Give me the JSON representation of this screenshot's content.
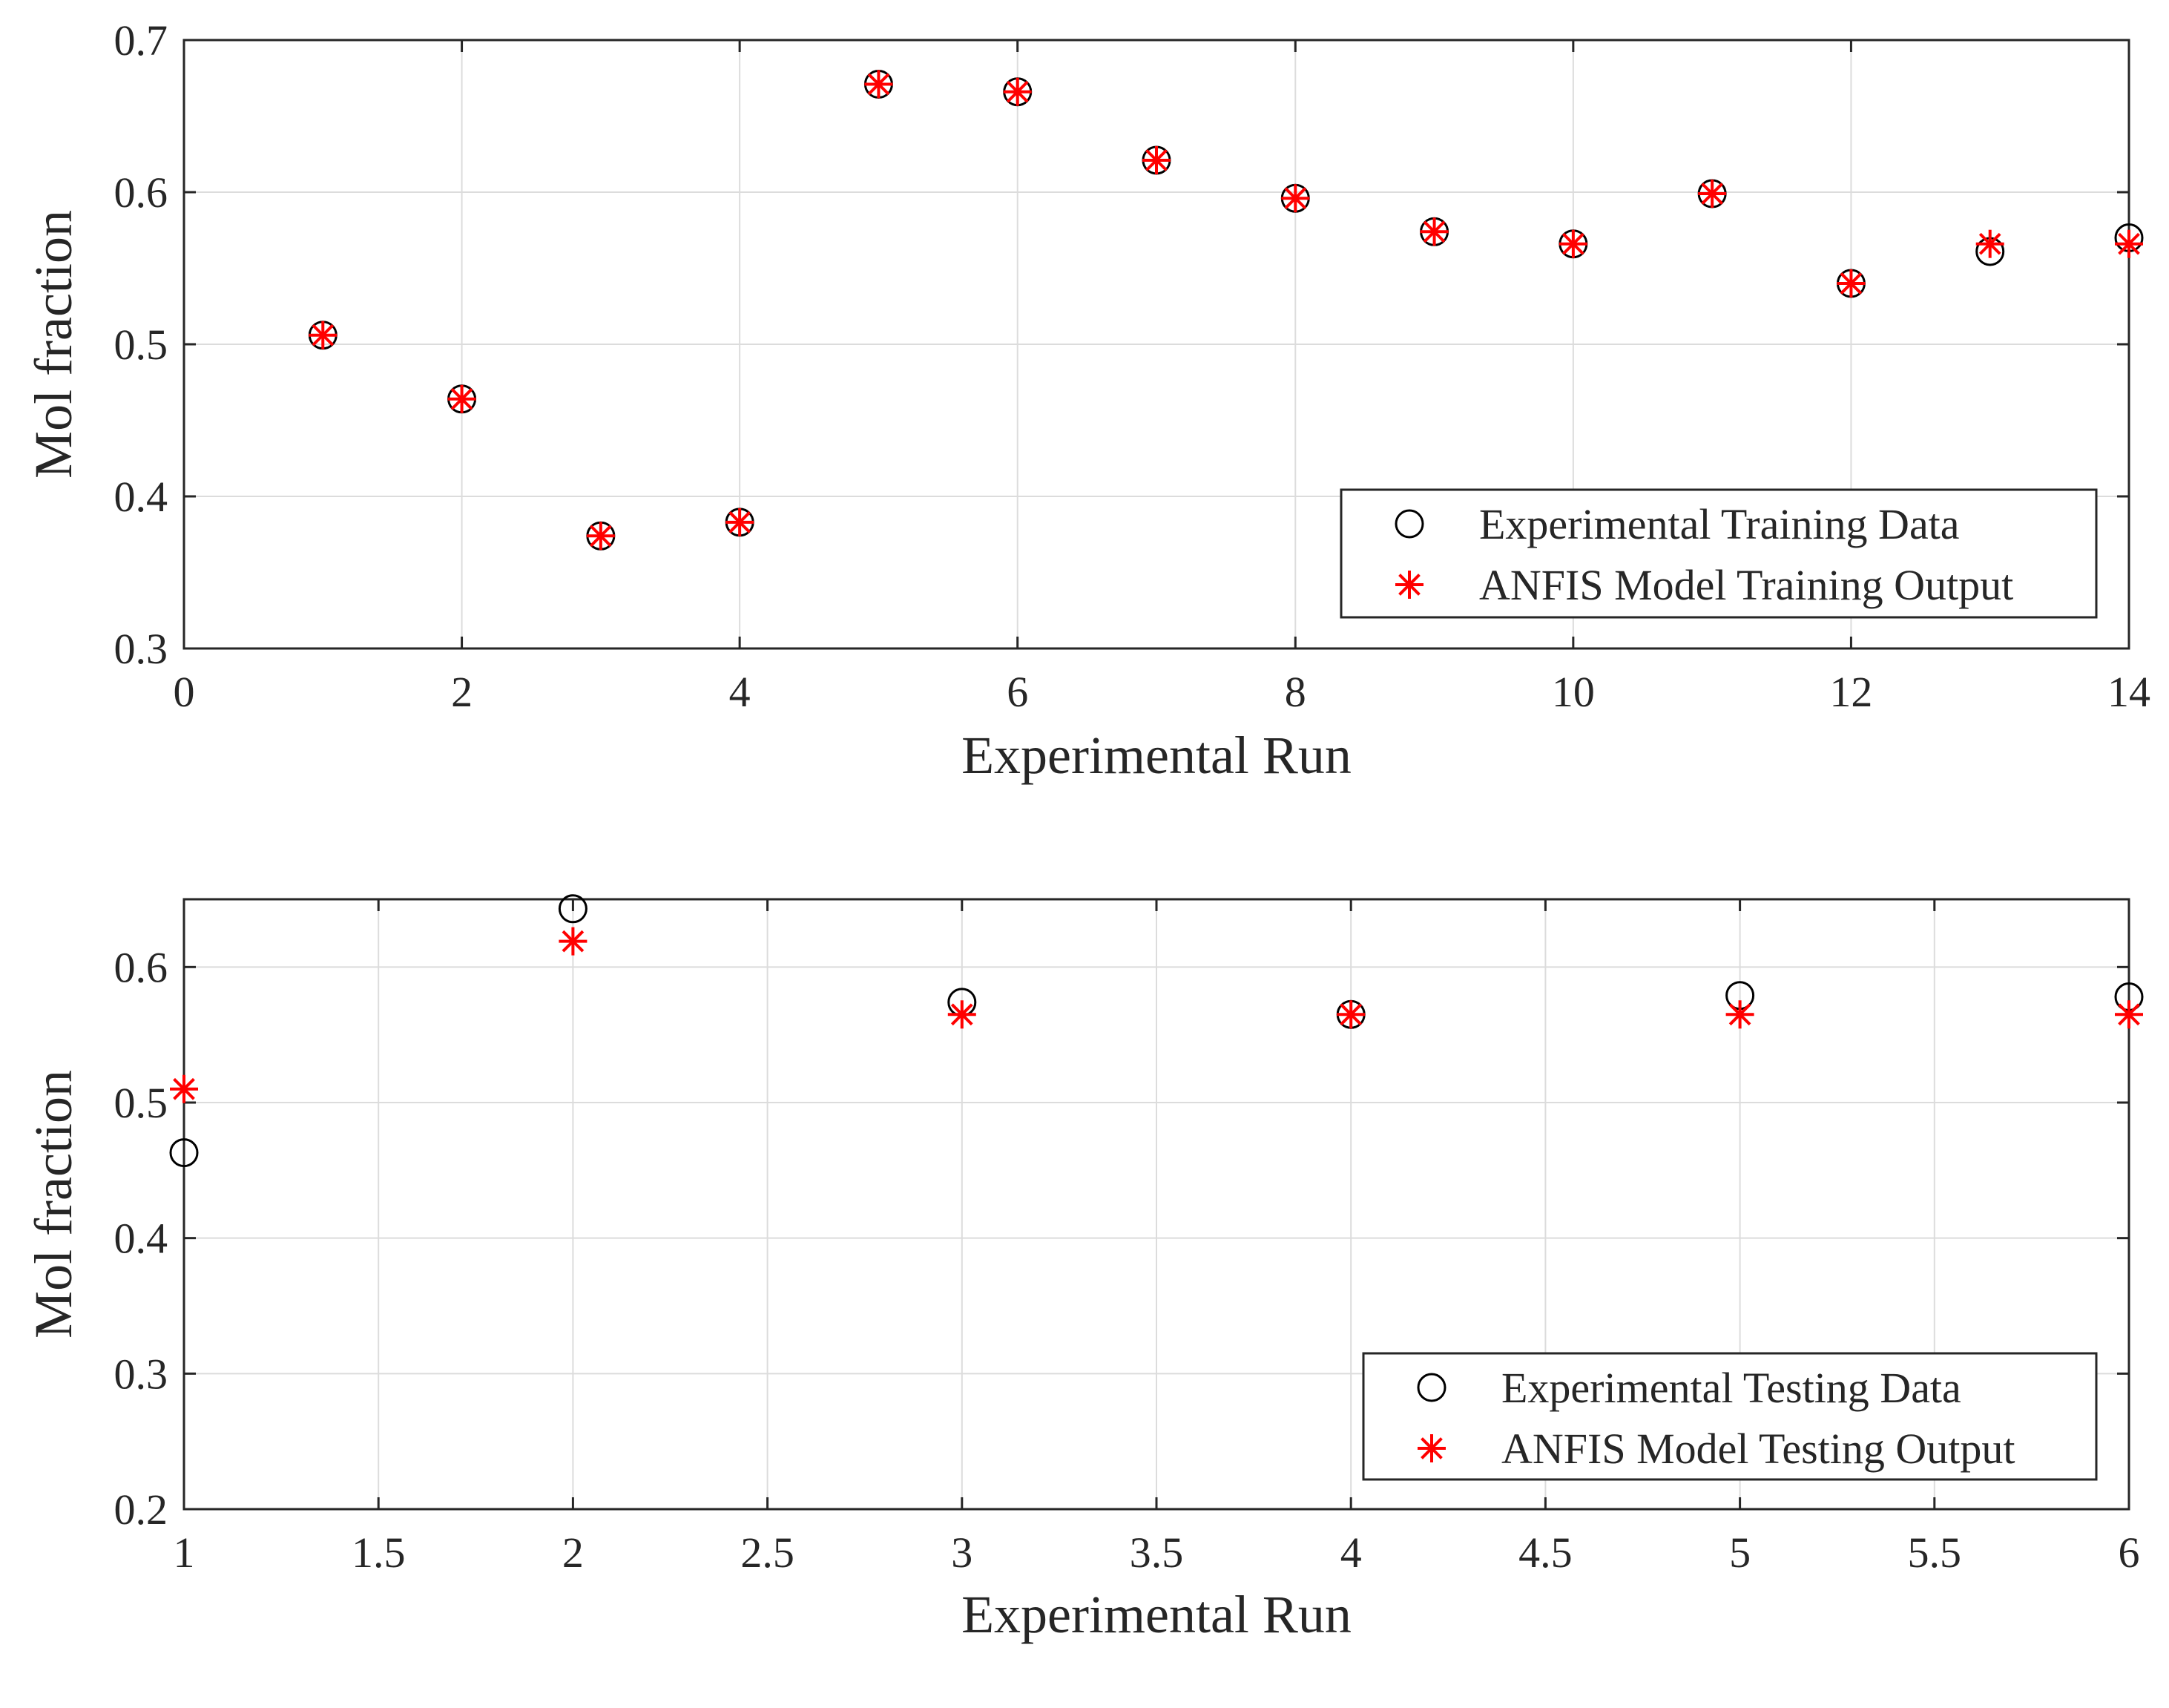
{
  "chart_data": [
    {
      "type": "scatter",
      "xlabel": "Experimental Run",
      "ylabel": "Mol fraction",
      "xlim": [
        0,
        14
      ],
      "ylim": [
        0.3,
        0.7
      ],
      "xticks": [
        0,
        2,
        4,
        6,
        8,
        10,
        12,
        14
      ],
      "xtick_labels": [
        "0",
        "2",
        "4",
        "6",
        "8",
        "10",
        "12",
        "14"
      ],
      "yticks": [
        0.3,
        0.4,
        0.5,
        0.6,
        0.7
      ],
      "ytick_labels": [
        "0.3",
        "0.4",
        "0.5",
        "0.6",
        "0.7"
      ],
      "grid": true,
      "legend_position": "bottom-right",
      "series": [
        {
          "name": "Experimental Training Data",
          "marker": "circle",
          "color": "#000000",
          "x": [
            1,
            2,
            3,
            4,
            5,
            6,
            7,
            8,
            9,
            10,
            11,
            12,
            13,
            14
          ],
          "y": [
            0.506,
            0.464,
            0.374,
            0.383,
            0.671,
            0.666,
            0.621,
            0.596,
            0.574,
            0.566,
            0.599,
            0.54,
            0.561,
            0.57
          ]
        },
        {
          "name": "ANFIS Model Training Output",
          "marker": "star",
          "color": "#ff0000",
          "x": [
            1,
            2,
            3,
            4,
            5,
            6,
            7,
            8,
            9,
            10,
            11,
            12,
            13,
            14
          ],
          "y": [
            0.506,
            0.464,
            0.374,
            0.383,
            0.671,
            0.666,
            0.621,
            0.596,
            0.574,
            0.566,
            0.599,
            0.54,
            0.566,
            0.566
          ]
        }
      ]
    },
    {
      "type": "scatter",
      "xlabel": "Experimental Run",
      "ylabel": "Mol fraction",
      "xlim": [
        1,
        6
      ],
      "ylim": [
        0.2,
        0.65
      ],
      "xticks": [
        1,
        1.5,
        2,
        2.5,
        3,
        3.5,
        4,
        4.5,
        5,
        5.5,
        6
      ],
      "xtick_labels": [
        "1",
        "1.5",
        "2",
        "2.5",
        "3",
        "3.5",
        "4",
        "4.5",
        "5",
        "5.5",
        "6"
      ],
      "yticks": [
        0.2,
        0.3,
        0.4,
        0.5,
        0.6
      ],
      "ytick_labels": [
        "0.2",
        "0.3",
        "0.4",
        "0.5",
        "0.6"
      ],
      "grid": true,
      "legend_position": "bottom-right",
      "series": [
        {
          "name": "Experimental Testing Data",
          "marker": "circle",
          "color": "#000000",
          "x": [
            1,
            2,
            3,
            4,
            5,
            6
          ],
          "y": [
            0.463,
            0.643,
            0.574,
            0.565,
            0.579,
            0.578
          ]
        },
        {
          "name": "ANFIS Model Testing Output",
          "marker": "star",
          "color": "#ff0000",
          "x": [
            1,
            2,
            3,
            4,
            5,
            6
          ],
          "y": [
            0.51,
            0.619,
            0.565,
            0.565,
            0.565,
            0.565
          ]
        }
      ]
    }
  ]
}
